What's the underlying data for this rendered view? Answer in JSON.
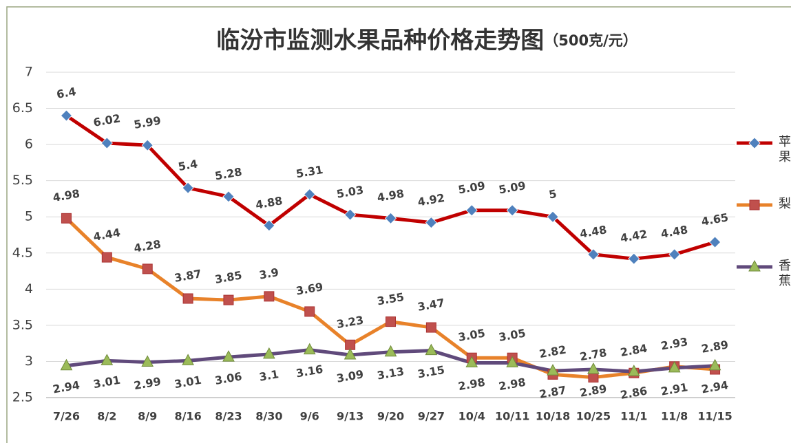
{
  "chart_data": {
    "type": "line",
    "title": "临汾市监测水果品种价格走势图",
    "subtitle": "（500克/元）",
    "categories": [
      "7/26",
      "8/2",
      "8/9",
      "8/16",
      "8/23",
      "8/30",
      "9/6",
      "9/13",
      "9/20",
      "9/27",
      "10/4",
      "10/11",
      "10/18",
      "10/25",
      "11/1",
      "11/8",
      "11/15"
    ],
    "series": [
      {
        "name": "苹果",
        "color": "#c00000",
        "marker": "diamond",
        "marker_color": "#4f81bd",
        "label_position": "above",
        "values": [
          6.4,
          6.02,
          5.99,
          5.4,
          5.28,
          4.88,
          5.31,
          5.03,
          4.98,
          4.92,
          5.09,
          5.09,
          5,
          4.48,
          4.42,
          4.48,
          4.65
        ]
      },
      {
        "name": "梨",
        "color": "#e8822a",
        "marker": "square",
        "marker_color": "#c0504d",
        "label_position": "above",
        "values": [
          4.98,
          4.44,
          4.28,
          3.87,
          3.85,
          3.9,
          3.69,
          3.23,
          3.55,
          3.47,
          3.05,
          3.05,
          2.82,
          2.78,
          2.84,
          2.93,
          2.89
        ]
      },
      {
        "name": "香蕉",
        "color": "#604a7b",
        "marker": "triangle",
        "marker_color": "#9bbb59",
        "label_position": "below",
        "values": [
          2.94,
          3.01,
          2.99,
          3.01,
          3.06,
          3.1,
          3.16,
          3.09,
          3.13,
          3.15,
          2.98,
          2.98,
          2.87,
          2.89,
          2.86,
          2.91,
          2.94
        ]
      }
    ],
    "ylim": [
      2.5,
      7
    ],
    "yticks": [
      2.5,
      3,
      3.5,
      4,
      4.5,
      5,
      5.5,
      6,
      6.5,
      7
    ],
    "grid": true,
    "legend": "right"
  }
}
